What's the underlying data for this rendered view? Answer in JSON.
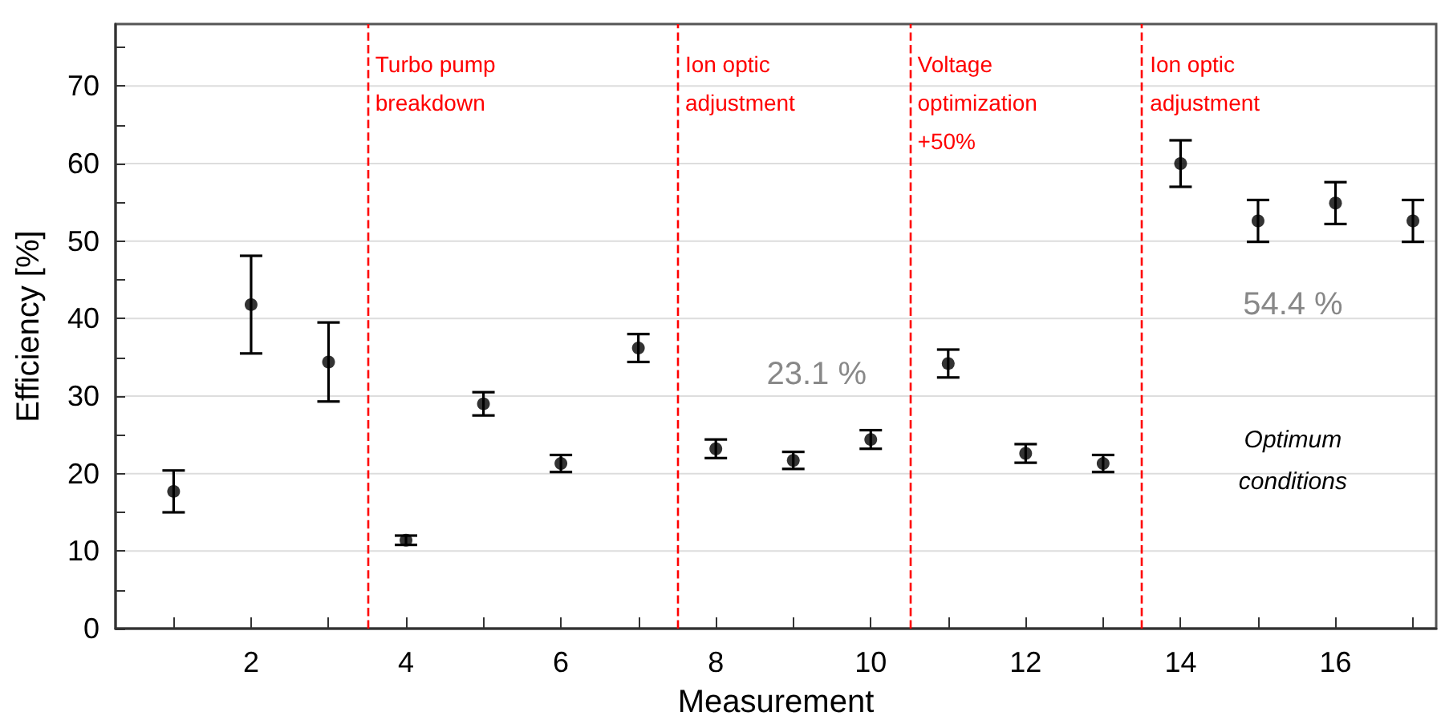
{
  "chart_data": {
    "type": "scatter",
    "xlabel": "Measurement",
    "ylabel": "Efficiency [%]",
    "x": [
      1,
      2,
      3,
      4,
      5,
      6,
      7,
      8,
      9,
      10,
      11,
      12,
      13,
      14,
      15,
      16,
      17
    ],
    "series": [
      {
        "color": "#000000",
        "values": [
          17.7,
          41.8,
          34.4,
          11.4,
          29.0,
          21.3,
          36.2,
          23.2,
          21.7,
          24.4,
          34.2,
          22.6,
          21.3,
          60.0,
          52.6,
          54.9,
          52.6
        ],
        "errors": [
          2.7,
          6.3,
          5.1,
          0.6,
          1.5,
          1.1,
          1.8,
          1.2,
          1.1,
          1.2,
          1.8,
          1.2,
          1.1,
          3.0,
          2.7,
          2.7,
          2.7
        ]
      }
    ],
    "marker": "circle",
    "xlim": [
      0.25,
      17.3
    ],
    "ylim": [
      0,
      78
    ],
    "xticks": [
      {
        "value": 1,
        "label": null
      },
      2,
      {
        "value": 3,
        "label": null
      },
      4,
      {
        "value": 5,
        "label": null
      },
      6,
      {
        "value": 7,
        "label": null
      },
      8,
      {
        "value": 9,
        "label": null
      },
      10,
      {
        "value": 11,
        "label": null
      },
      12,
      {
        "value": 13,
        "label": null
      },
      14,
      {
        "value": 15,
        "label": null
      },
      16,
      {
        "value": 17,
        "label": null
      }
    ],
    "yticks": [
      0,
      {
        "value": 5,
        "label": null
      },
      10,
      {
        "value": 15,
        "label": null
      },
      20,
      {
        "value": 25,
        "label": null
      },
      30,
      {
        "value": 35,
        "label": null
      },
      40,
      {
        "value": 45,
        "label": null
      },
      50,
      {
        "value": 55,
        "label": null
      },
      60,
      {
        "value": 65,
        "label": null
      },
      70,
      {
        "value": 75,
        "label": null
      }
    ],
    "grid": "y",
    "ref_lines": [
      {
        "axis": "x",
        "value": 3.5,
        "label": "Turbo pump\nbreakdown",
        "color": "#ff0000",
        "line_style": "dashed"
      },
      {
        "axis": "x",
        "value": 7.5,
        "label": "Ion optic\nadjustment",
        "color": "#ff0000",
        "line_style": "dashed"
      },
      {
        "axis": "x",
        "value": 10.5,
        "label": "Voltage\noptimization\n+50%",
        "color": "#ff0000",
        "line_style": "dashed"
      },
      {
        "axis": "x",
        "value": 13.5,
        "label": "Ion optic\nadjustment",
        "color": "#ff0000",
        "line_style": "dashed"
      }
    ],
    "annotations": [
      "23.1 %",
      "54.4 %",
      "Optimum\nconditions"
    ]
  }
}
